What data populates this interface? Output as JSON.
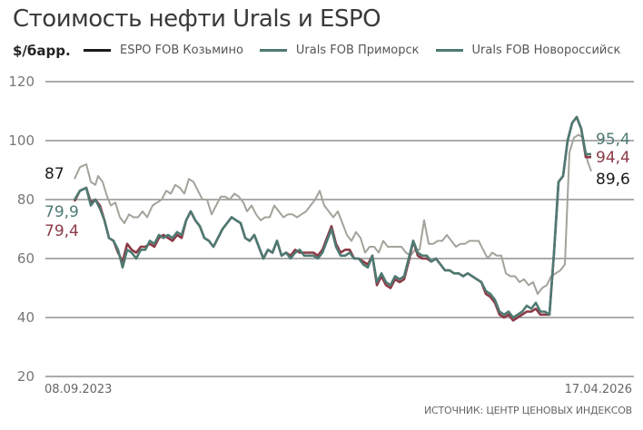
{
  "chart_data": {
    "type": "line",
    "title": "Стоимость нефти Urals и ESPO",
    "ylabel": "$/барр.",
    "xlabel": "",
    "ylim": [
      20,
      120
    ],
    "yticks": [
      20,
      40,
      60,
      80,
      100,
      120
    ],
    "xrange_labels": [
      "08.09.2023",
      "17.04.2026"
    ],
    "grid": true,
    "legend_position": "top",
    "legend": [
      "ESPO FOB Козьмино",
      "Urals FOB Приморск",
      "Urals FOB Новороссийск"
    ],
    "source": "ИСТОЧНИК: ЦЕНТР ЦЕНОВЫХ ИНДЕКСОВ",
    "series": [
      {
        "name": "ESPO FOB Козьмино",
        "color": "#a3a39b",
        "start_value": 87,
        "end_value": 89.6,
        "x": [
          82,
          88,
          95,
          100,
          105,
          108,
          113,
          118,
          122,
          127,
          132,
          137,
          142,
          147,
          152,
          157,
          162,
          168,
          173,
          178,
          183,
          188,
          193,
          198,
          203,
          208,
          213,
          218,
          223,
          228,
          233,
          238,
          243,
          248,
          253,
          258,
          263,
          268,
          272,
          277,
          282,
          287,
          292,
          297,
          302,
          307,
          312,
          317,
          322,
          327,
          332,
          337,
          342,
          347,
          352,
          357,
          362,
          367,
          372,
          377,
          382,
          387,
          392,
          397,
          402,
          407,
          412,
          417,
          422,
          427,
          432,
          437,
          442,
          447,
          452,
          457,
          462,
          467,
          472,
          477,
          482,
          487,
          492,
          497,
          502,
          507,
          512,
          517,
          522,
          527,
          532,
          537,
          542,
          547,
          552,
          557,
          562,
          567,
          572,
          577,
          582,
          587,
          592,
          597,
          602,
          607,
          612,
          617,
          622,
          627,
          632,
          637,
          642,
          647,
          651
        ],
        "values": [
          87,
          91,
          92,
          86,
          85,
          88,
          86,
          81,
          78,
          79,
          74,
          72,
          75,
          74,
          74,
          76,
          74,
          78,
          79,
          80,
          83,
          82,
          85,
          84,
          82,
          87,
          86,
          83,
          80,
          80,
          75,
          78,
          81,
          81,
          80,
          82,
          81,
          79,
          76,
          78,
          75,
          73,
          74,
          74,
          78,
          76,
          74,
          75,
          75,
          74,
          75,
          76,
          78,
          80,
          83,
          78,
          76,
          74,
          76,
          72,
          68,
          66,
          69,
          67,
          62,
          64,
          64,
          62,
          66,
          64,
          64,
          64,
          64,
          62,
          61,
          63,
          63,
          73,
          65,
          65,
          66,
          66,
          68,
          66,
          64,
          65,
          65,
          66,
          66,
          66,
          63,
          60,
          62,
          61,
          61,
          55,
          54,
          54,
          52,
          53,
          51,
          52,
          48,
          50,
          51,
          54,
          55,
          56,
          58,
          96,
          101,
          102,
          101,
          93,
          89.6
        ]
      },
      {
        "name": "Urals FOB Приморск",
        "color": "#4e7a72",
        "start_value": 79.9,
        "end_value": 95.4,
        "x": [
          82,
          88,
          95,
          100,
          105,
          110,
          115,
          120,
          125,
          130,
          135,
          140,
          145,
          150,
          155,
          160,
          165,
          170,
          175,
          180,
          185,
          190,
          195,
          200,
          205,
          210,
          215,
          220,
          225,
          230,
          235,
          240,
          245,
          250,
          255,
          260,
          265,
          270,
          275,
          280,
          285,
          290,
          295,
          300,
          305,
          310,
          315,
          320,
          325,
          330,
          335,
          340,
          345,
          350,
          355,
          360,
          365,
          370,
          375,
          380,
          385,
          390,
          395,
          400,
          405,
          410,
          415,
          420,
          425,
          430,
          435,
          440,
          445,
          450,
          455,
          460,
          465,
          470,
          475,
          480,
          485,
          490,
          495,
          500,
          505,
          510,
          515,
          520,
          525,
          530,
          535,
          540,
          545,
          550,
          555,
          560,
          565,
          570,
          575,
          580,
          585,
          590,
          595,
          600,
          605,
          610,
          615,
          620,
          625,
          630,
          635,
          640,
          645,
          648,
          651
        ],
        "values": [
          79.9,
          83,
          84,
          78,
          80,
          77,
          73,
          67,
          66,
          63,
          57,
          63,
          62,
          60,
          63,
          63,
          66,
          65,
          68,
          67,
          68,
          67,
          69,
          68,
          73,
          76,
          73,
          71,
          67,
          66,
          64,
          67,
          70,
          72,
          74,
          73,
          72,
          67,
          66,
          68,
          64,
          60,
          63,
          62,
          66,
          61,
          62,
          60,
          62,
          63,
          61,
          61,
          61,
          60,
          62,
          66,
          70,
          64,
          61,
          61,
          62,
          60,
          60,
          58,
          57,
          61,
          52,
          55,
          52,
          51,
          54,
          53,
          54,
          60,
          66,
          62,
          61,
          61,
          59,
          60,
          58,
          56,
          56,
          55,
          55,
          54,
          55,
          54,
          53,
          52,
          49,
          48,
          46,
          42,
          41,
          42,
          40,
          41,
          42,
          44,
          43,
          45,
          42,
          42,
          41,
          62,
          86,
          88,
          100,
          106,
          108,
          104,
          95.4,
          95.4,
          95.4
        ]
      },
      {
        "name": "Urals FOB Новороссийск",
        "color": "#8c3a46",
        "start_value": 79.4,
        "end_value": 94.4,
        "x": [
          82,
          88,
          95,
          100,
          105,
          110,
          115,
          120,
          125,
          130,
          135,
          140,
          145,
          150,
          155,
          160,
          165,
          170,
          175,
          180,
          185,
          190,
          195,
          200,
          205,
          210,
          215,
          220,
          225,
          230,
          235,
          240,
          245,
          250,
          255,
          260,
          265,
          270,
          275,
          280,
          285,
          290,
          295,
          300,
          305,
          310,
          315,
          320,
          325,
          330,
          335,
          340,
          345,
          350,
          355,
          360,
          365,
          370,
          375,
          380,
          385,
          390,
          395,
          400,
          405,
          410,
          415,
          420,
          425,
          430,
          435,
          440,
          445,
          450,
          455,
          460,
          465,
          470,
          475,
          480,
          485,
          490,
          495,
          500,
          505,
          510,
          515,
          520,
          525,
          530,
          535,
          540,
          545,
          550,
          555,
          560,
          565,
          570,
          575,
          580,
          585,
          590,
          595,
          600,
          605,
          610,
          615,
          620,
          625,
          630,
          635,
          640,
          645,
          648,
          651
        ],
        "values": [
          79.4,
          83,
          84,
          79,
          80,
          78,
          73,
          67,
          66,
          62,
          59,
          65,
          63,
          62,
          64,
          64,
          65,
          64,
          67,
          68,
          67,
          66,
          68,
          67,
          73,
          76,
          73,
          71,
          67,
          66,
          64,
          67,
          70,
          72,
          74,
          73,
          72,
          67,
          66,
          68,
          64,
          60,
          63,
          62,
          66,
          61,
          62,
          61,
          63,
          62,
          62,
          62,
          62,
          61,
          63,
          67,
          71,
          65,
          62,
          63,
          63,
          60,
          60,
          59,
          58,
          61,
          51,
          54,
          51,
          50,
          53,
          52,
          53,
          59,
          66,
          61,
          60,
          60,
          59,
          60,
          58,
          56,
          56,
          55,
          55,
          54,
          55,
          54,
          53,
          52,
          48,
          47,
          45,
          41,
          40,
          41,
          39,
          40,
          41,
          42,
          42,
          43,
          41,
          41,
          41,
          62,
          86,
          88,
          100,
          106,
          108,
          104,
          94.4,
          94.4,
          94.4
        ]
      }
    ],
    "end_labels": [
      {
        "text": "95,4",
        "color": "#4e7a72"
      },
      {
        "text": "94,4",
        "color": "#8c3a46"
      },
      {
        "text": "89,6",
        "color": "#1a1a1a"
      }
    ],
    "start_labels": [
      {
        "text": "87",
        "color": "#1a1a1a"
      },
      {
        "text": "79,9",
        "color": "#4e7a72"
      },
      {
        "text": "79,4",
        "color": "#8c3a46"
      }
    ]
  },
  "header": {
    "title": "Стоимость нефти Urals и ESPO",
    "unit": "$/барр."
  },
  "legend": [
    {
      "label": "ESPO FOB Козьмино",
      "color": "#1a1a1a"
    },
    {
      "label": "Urals FOB Приморск",
      "color": "#4e7a72"
    },
    {
      "label": "Urals FOB Новороссийск",
      "color": "#4e7a72"
    }
  ],
  "axis": {
    "x_start": "08.09.2023",
    "x_end": "17.04.2026",
    "yticks": [
      "120",
      "100",
      "80",
      "60",
      "40",
      "20"
    ]
  },
  "footer": {
    "source": "ИСТОЧНИК: ЦЕНТР ЦЕНОВЫХ ИНДЕКСОВ"
  }
}
